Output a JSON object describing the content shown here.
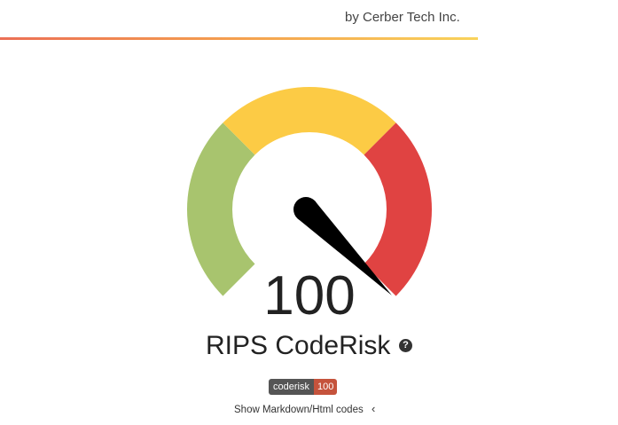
{
  "header": {
    "byline": "by Cerber Tech Inc."
  },
  "gauge": {
    "score": 100,
    "score_label": "100",
    "min": 0,
    "max": 100,
    "colors": {
      "low": "#a8c46e",
      "mid": "#fccb45",
      "high": "#e04342",
      "needle": "#000000"
    }
  },
  "title": "RIPS CodeRisk",
  "help_icon": "?",
  "badge": {
    "label": "coderisk",
    "value": "100"
  },
  "show_codes": {
    "label": "Show Markdown/Html codes",
    "icon": "chevron-left-icon"
  }
}
